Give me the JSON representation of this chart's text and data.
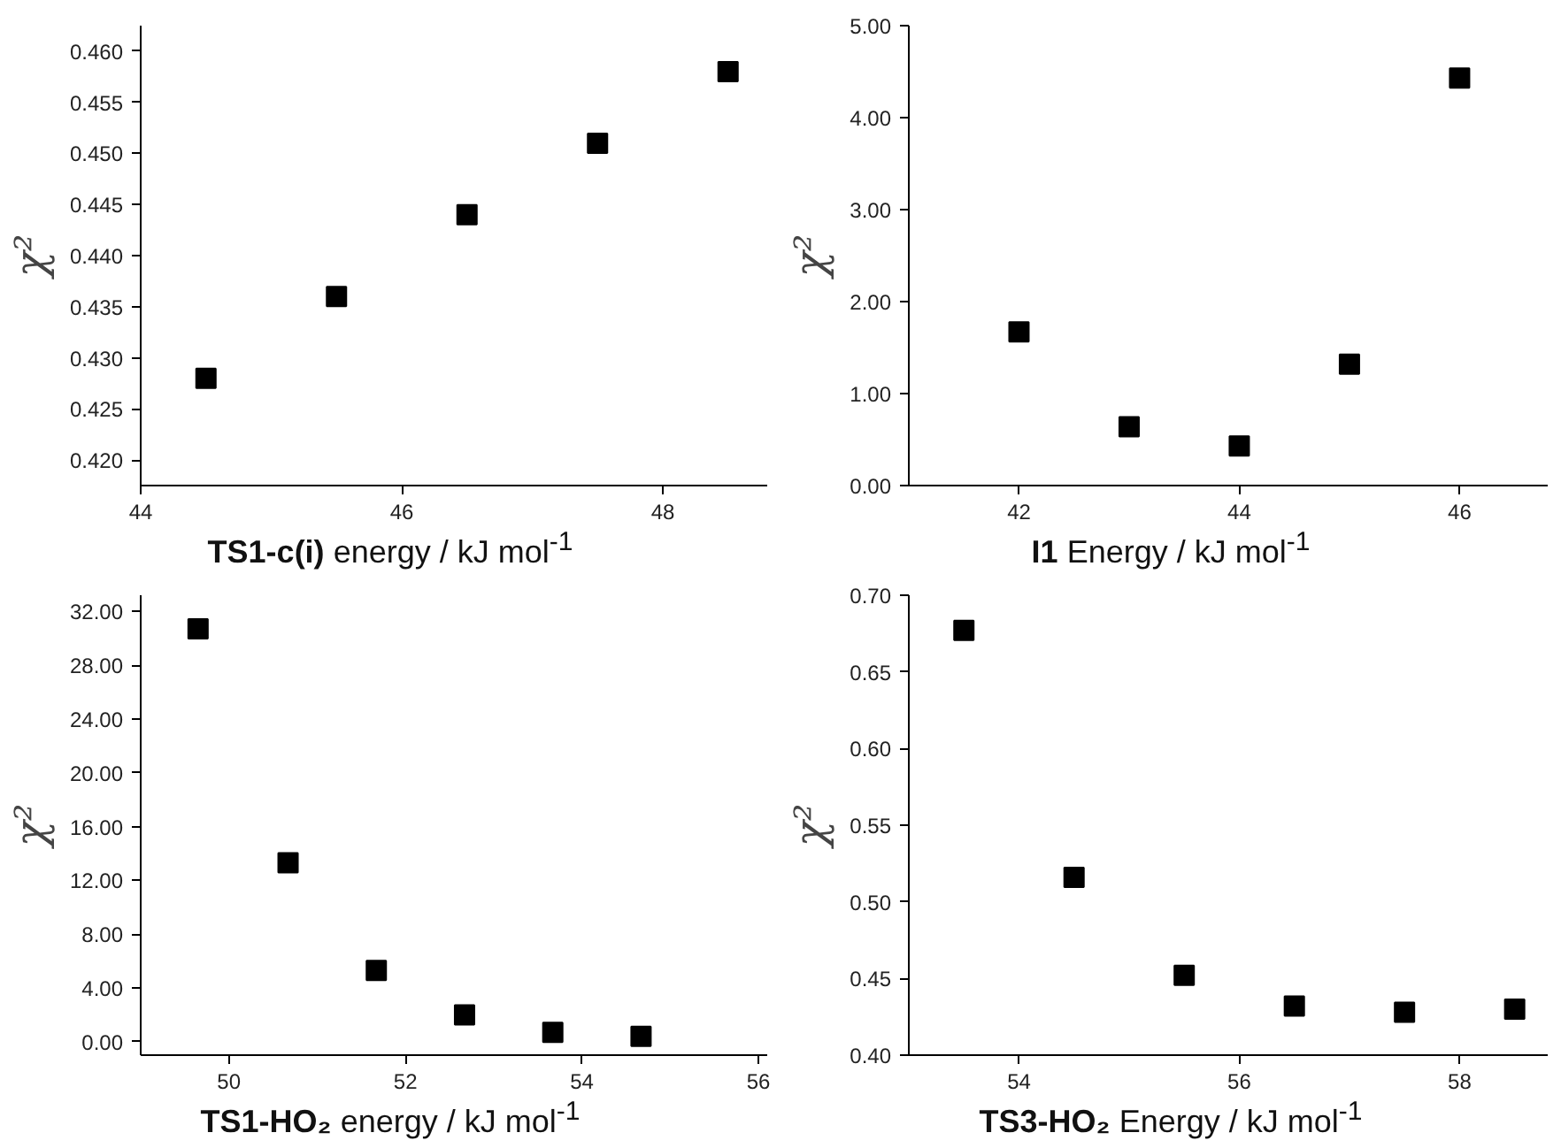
{
  "chart_data": [
    {
      "type": "scatter",
      "xlabel": "TS1-c(i) energy / kJ mol$^{-1}$",
      "ylabel": "χ²",
      "marker": "square",
      "x": [
        44.5,
        45.5,
        46.5,
        47.5,
        48.5
      ],
      "xlim": [
        44,
        48.8
      ],
      "xticks": [
        44,
        46,
        48
      ],
      "ylim": [
        0.4175,
        0.4625
      ],
      "yticks": [
        {
          "value": 0.42,
          "label": "0.420"
        },
        {
          "value": 0.425,
          "label": "0.425"
        },
        {
          "value": 0.43,
          "label": "0.430"
        },
        {
          "value": 0.435,
          "label": "0.435"
        },
        {
          "value": 0.44,
          "label": "0.440"
        },
        {
          "value": 0.445,
          "label": "0.445"
        },
        {
          "value": 0.45,
          "label": "0.450"
        },
        {
          "value": 0.455,
          "label": "0.455"
        },
        {
          "value": 0.46,
          "label": "0.460"
        }
      ],
      "series": [
        {
          "color": "#000000",
          "values": [
            0.428,
            0.436,
            0.444,
            0.451,
            0.458
          ]
        }
      ]
    },
    {
      "type": "scatter",
      "xlabel": "I1 Energy / kJ mol$^{-1}$",
      "ylabel": "χ²",
      "marker": "square",
      "x": [
        42,
        43,
        44,
        45,
        46
      ],
      "xlim": [
        41,
        46.8
      ],
      "xticks": [
        42,
        44,
        46
      ],
      "ylim": [
        0,
        5
      ],
      "yticks": [
        {
          "value": 0,
          "label": "0.00"
        },
        {
          "value": 1,
          "label": "1.00"
        },
        {
          "value": 2,
          "label": "2.00"
        },
        {
          "value": 3,
          "label": "3.00"
        },
        {
          "value": 4,
          "label": "4.00"
        },
        {
          "value": 5,
          "label": "5.00"
        }
      ],
      "series": [
        {
          "color": "#000000",
          "values": [
            1.67,
            0.64,
            0.43,
            1.32,
            4.43
          ]
        }
      ]
    },
    {
      "type": "scatter",
      "xlabel": "TS1-HO₂ energy / kJ mol$^{-1}$",
      "ylabel": "χ²",
      "marker": "square",
      "x": [
        49.65,
        50.67,
        51.67,
        52.67,
        53.67,
        54.67
      ],
      "xlim": [
        49,
        56.1
      ],
      "xticks": [
        50,
        52,
        54,
        56
      ],
      "ylim": [
        -1,
        33.2
      ],
      "yticks": [
        {
          "value": 0,
          "label": "0.00"
        },
        {
          "value": 4,
          "label": "4.00"
        },
        {
          "value": 8,
          "label": "8.00"
        },
        {
          "value": 12,
          "label": "12.00"
        },
        {
          "value": 16,
          "label": "16.00"
        },
        {
          "value": 20,
          "label": "20.00"
        },
        {
          "value": 24,
          "label": "24.00"
        },
        {
          "value": 28,
          "label": "28.00"
        },
        {
          "value": 32,
          "label": "32.00"
        }
      ],
      "series": [
        {
          "color": "#000000",
          "values": [
            30.7,
            13.3,
            5.3,
            2.0,
            0.7,
            0.4
          ]
        }
      ]
    },
    {
      "type": "scatter",
      "xlabel": "TS3-HO₂ Energy / kJ mol$^{-1}$",
      "ylabel": "χ²",
      "marker": "square",
      "x": [
        53.5,
        54.5,
        55.5,
        56.5,
        57.5,
        58.5
      ],
      "xlim": [
        53,
        58.8
      ],
      "xticks": [
        54,
        56,
        58
      ],
      "ylim": [
        0.4,
        0.7
      ],
      "yticks": [
        {
          "value": 0.4,
          "label": "0.40"
        },
        {
          "value": 0.45,
          "label": "0.45"
        },
        {
          "value": 0.5,
          "label": "0.50"
        },
        {
          "value": 0.55,
          "label": "0.55"
        },
        {
          "value": 0.6,
          "label": "0.60"
        },
        {
          "value": 0.65,
          "label": "0.65"
        },
        {
          "value": 0.7,
          "label": "0.70"
        }
      ],
      "series": [
        {
          "color": "#000000",
          "values": [
            0.677,
            0.516,
            0.452,
            0.432,
            0.428,
            0.43
          ]
        }
      ]
    }
  ]
}
